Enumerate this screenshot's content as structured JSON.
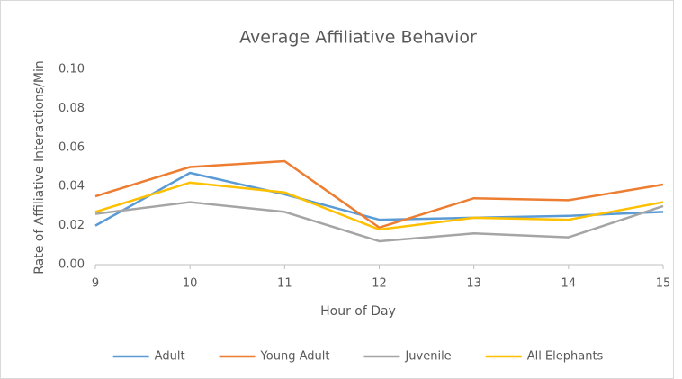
{
  "chart_data": {
    "type": "line",
    "title": "Average Affiliative Behavior",
    "xlabel": "Hour of Day",
    "ylabel": "Rate of Affiliative Interactions/Min",
    "x": [
      9,
      10,
      11,
      12,
      13,
      14,
      15
    ],
    "xlim": [
      9,
      15
    ],
    "xticks": [
      9,
      10,
      11,
      12,
      13,
      14,
      15
    ],
    "ylim": [
      0,
      0.1
    ],
    "yticks": [
      {
        "value": 0,
        "label": "0.00"
      },
      {
        "value": 0.02,
        "label": "0.02"
      },
      {
        "value": 0.04,
        "label": "0.04"
      },
      {
        "value": 0.06,
        "label": "0.06"
      },
      {
        "value": 0.08,
        "label": "0.08"
      },
      {
        "value": 0.1,
        "label": "0.10"
      }
    ],
    "grid": false,
    "legend": "bottom",
    "series": [
      {
        "name": "Adult",
        "color": "#5b9bd5",
        "values": [
          0.02,
          0.047,
          0.036,
          0.023,
          0.024,
          0.025,
          0.027
        ]
      },
      {
        "name": "Young Adult",
        "color": "#ed7d31",
        "values": [
          0.035,
          0.05,
          0.053,
          0.019,
          0.034,
          0.033,
          0.041
        ]
      },
      {
        "name": "Juvenile",
        "color": "#a5a5a5",
        "values": [
          0.026,
          0.032,
          0.027,
          0.012,
          0.016,
          0.014,
          0.03
        ]
      },
      {
        "name": "All Elephants",
        "color": "#ffc000",
        "values": [
          0.027,
          0.042,
          0.037,
          0.018,
          0.024,
          0.023,
          0.032
        ]
      }
    ]
  }
}
